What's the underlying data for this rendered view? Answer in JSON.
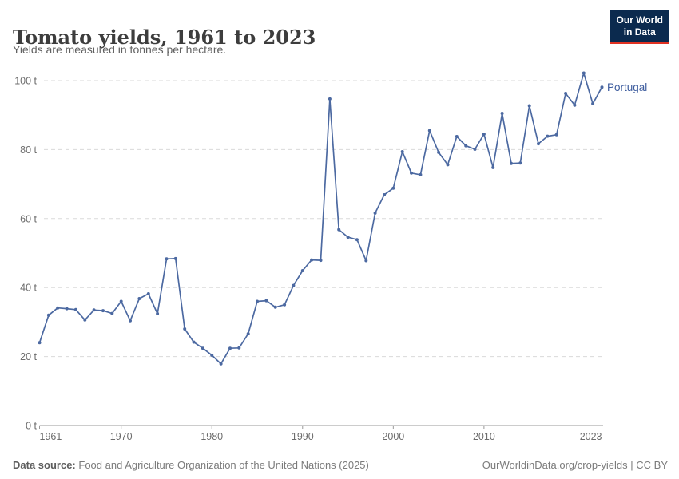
{
  "header": {
    "title": "Tomato yields, 1961 to 2023",
    "subtitle": "Yields are measured in tonnes per hectare.",
    "logo_line1": "Our World",
    "logo_line2": "in Data"
  },
  "chart_data": {
    "type": "line",
    "title": "Tomato yields, 1961 to 2023",
    "unit": "tonnes per hectare",
    "x_range": [
      1961,
      2023
    ],
    "y_range": [
      0,
      100
    ],
    "grid": "horizontal-dashed",
    "legend_position": "end-of-line-label",
    "series_label": "Portugal",
    "yticks": [
      {
        "value": 0,
        "label": "0 t"
      },
      {
        "value": 20,
        "label": "20 t"
      },
      {
        "value": 40,
        "label": "40 t"
      },
      {
        "value": 60,
        "label": "60 t"
      },
      {
        "value": 80,
        "label": "80 t"
      },
      {
        "value": 100,
        "label": "100 t"
      }
    ],
    "xticks": [
      {
        "value": 1961,
        "label": "1961"
      },
      {
        "value": 1970,
        "label": "1970"
      },
      {
        "value": 1980,
        "label": "1980"
      },
      {
        "value": 1990,
        "label": "1990"
      },
      {
        "value": 2000,
        "label": "2000"
      },
      {
        "value": 2010,
        "label": "2010"
      },
      {
        "value": 2023,
        "label": "2023"
      }
    ],
    "series": [
      {
        "name": "Portugal",
        "color": "#4c69a1",
        "x": [
          1961,
          1962,
          1963,
          1964,
          1965,
          1966,
          1967,
          1968,
          1969,
          1970,
          1971,
          1972,
          1973,
          1974,
          1975,
          1976,
          1977,
          1978,
          1979,
          1980,
          1981,
          1982,
          1983,
          1984,
          1985,
          1986,
          1987,
          1988,
          1989,
          1990,
          1991,
          1992,
          1993,
          1994,
          1995,
          1996,
          1997,
          1998,
          1999,
          2000,
          2001,
          2002,
          2003,
          2004,
          2005,
          2006,
          2007,
          2008,
          2009,
          2010,
          2011,
          2012,
          2013,
          2014,
          2015,
          2016,
          2017,
          2018,
          2019,
          2020,
          2021,
          2022,
          2023
        ],
        "values": [
          24.0,
          32.0,
          34.1,
          33.9,
          33.6,
          30.6,
          33.5,
          33.3,
          32.5,
          36.0,
          30.4,
          36.8,
          38.2,
          32.4,
          48.3,
          48.4,
          28.0,
          24.2,
          22.4,
          20.4,
          17.9,
          22.4,
          22.5,
          26.6,
          36.0,
          36.2,
          34.3,
          35.0,
          40.6,
          44.9,
          48.0,
          47.9,
          94.7,
          56.8,
          54.6,
          53.9,
          47.8,
          61.6,
          66.9,
          68.8,
          79.4,
          73.2,
          72.7,
          85.5,
          79.2,
          75.6,
          83.8,
          81.1,
          80.1,
          84.5,
          74.8,
          90.5,
          76.0,
          76.1,
          92.7,
          81.7,
          83.9,
          84.3,
          96.3,
          92.9,
          102.2,
          93.3,
          98.1
        ]
      }
    ]
  },
  "footer": {
    "source_prefix": "Data source:",
    "source_text": "Food and Agriculture Organization of the United Nations (2025)",
    "link_text": "OurWorldinData.org/crop-yields",
    "separator": "|",
    "license_text": "CC BY"
  },
  "colors": {
    "line": "#4c69a1",
    "series_label": "#3d5c9e",
    "gridline": "#dadada",
    "axis": "#999999",
    "tick_text": "#6d6d6d",
    "logo_bg": "#0b2a4e",
    "logo_red": "#e13223"
  }
}
